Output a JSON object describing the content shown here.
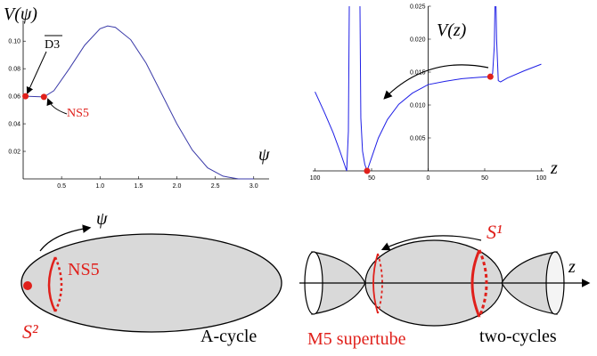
{
  "chart_data": [
    {
      "type": "line",
      "y_label": "V(ψ)",
      "x_label": "ψ",
      "xlim": [
        0,
        3.2
      ],
      "ylim": [
        0,
        0.115
      ],
      "xticks": [
        0.5,
        {
          "value": 1,
          "label": "1.0"
        },
        1.5,
        {
          "value": 2,
          "label": "2.0"
        },
        2.5,
        {
          "value": 3,
          "label": "3.0"
        }
      ],
      "yticks": [
        0.02,
        0.04,
        0.06,
        0.08,
        {
          "value": 0.1,
          "label": "0.10"
        }
      ],
      "x": [
        0.03,
        0.15,
        0.27,
        0.4,
        0.6,
        0.8,
        1.0,
        1.1,
        1.2,
        1.4,
        1.6,
        1.8,
        2.0,
        2.2,
        2.4,
        2.6,
        2.8,
        3.0
      ],
      "series": [
        {
          "color": "#3a3aa8",
          "values": [
            0.06,
            0.0598,
            0.0595,
            0.064,
            0.08,
            0.097,
            0.109,
            0.111,
            0.11,
            0.101,
            0.084,
            0.062,
            0.04,
            0.021,
            0.008,
            0.002,
            0,
            0
          ]
        }
      ],
      "points": {
        "color": "#e0201b",
        "x": [
          0.03,
          0.27
        ],
        "y": [
          0.06,
          0.0595
        ]
      },
      "annotations": [
        "D3",
        "NS5"
      ]
    },
    {
      "type": "line",
      "y_label": "V(z)",
      "x_label": "z",
      "xlim": [
        -102,
        102
      ],
      "ylim": [
        0,
        0.025
      ],
      "xticks": [
        {
          "value": -100,
          "label": "100"
        },
        {
          "value": -50,
          "label": "50"
        },
        0,
        50,
        100
      ],
      "yticks": [
        0.005,
        {
          "value": 0.01,
          "label": "0.010"
        },
        0.015,
        {
          "value": 0.02,
          "label": "0.020"
        },
        0.025
      ],
      "x": [
        -100,
        -92,
        -84,
        -78,
        -74,
        -72,
        -70.5,
        -69.5,
        -65,
        -60.5,
        -59.5,
        -58,
        -56,
        -54,
        -50,
        -44,
        -36,
        -26,
        -14,
        0,
        15,
        30,
        45,
        55,
        57,
        58.5,
        59.5,
        60.5,
        62,
        64,
        70,
        85,
        100
      ],
      "series": [
        {
          "color": "#1f1fe6",
          "values": [
            0.012,
            0.009,
            0.0058,
            0.003,
            0.001,
            0,
            0.006,
            0.03,
            null,
            0.03,
            0.008,
            0.003,
            0.001,
            0,
            0.002,
            0.005,
            0.0078,
            0.0101,
            0.0118,
            0.0131,
            0.0136,
            0.014,
            0.0142,
            0.0143,
            0.0148,
            0.019,
            0.03,
            0.02,
            0.0137,
            0.0135,
            0.0141,
            0.0152,
            0.0162
          ]
        }
      ],
      "points": {
        "color": "#e0201b",
        "x": [
          -54,
          55
        ],
        "y": [
          0,
          0.0143
        ]
      }
    }
  ],
  "diagrams": {
    "left": {
      "direction": "ψ",
      "brane": "NS5",
      "sphere": "S²",
      "caption": "A-cycle"
    },
    "right": {
      "sphere": "S¹",
      "axis": "z",
      "label": "M5 supertube",
      "caption": "two-cycles"
    }
  }
}
